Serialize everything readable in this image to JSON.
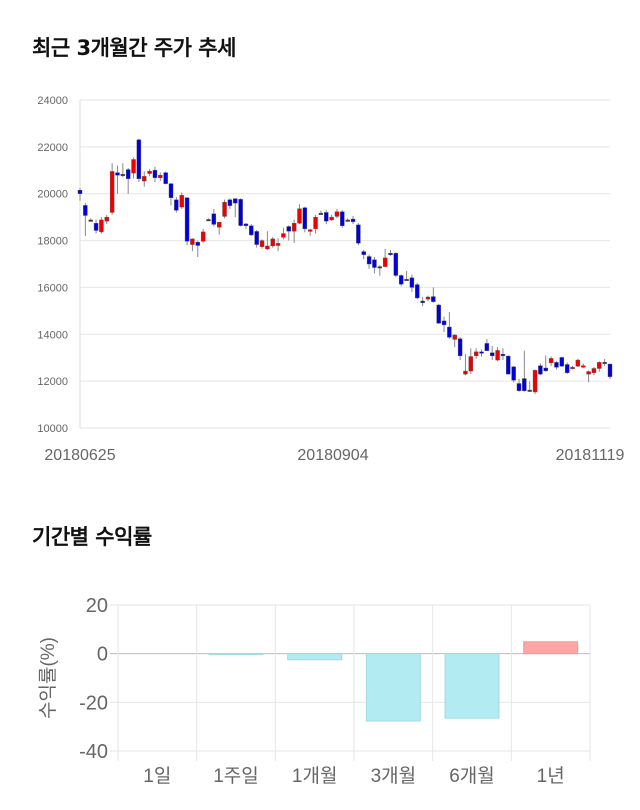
{
  "section1": {
    "title": "최근 3개월간 주가 추세"
  },
  "section2": {
    "title": "기간별 수익률"
  },
  "chart_data": [
    {
      "type": "candlestick",
      "ylim": [
        10000,
        24000
      ],
      "yticks": [
        "24000",
        "22000",
        "20000",
        "18000",
        "16000",
        "14000",
        "12000",
        "10000"
      ],
      "xticks": [
        "20180625",
        "20180904",
        "20181119"
      ],
      "colors": {
        "up": "#ee0000",
        "down": "#0000dd",
        "doji": "#333333"
      },
      "grid": true,
      "candles": [
        [
          20150,
          20250,
          19700,
          20000
        ],
        [
          19500,
          19600,
          18200,
          19070
        ],
        [
          18880,
          18950,
          18800,
          18880
        ],
        [
          18740,
          18900,
          18300,
          18430
        ],
        [
          18370,
          19000,
          18300,
          18880
        ],
        [
          18830,
          19100,
          18700,
          19000
        ],
        [
          19200,
          21300,
          19100,
          20950
        ],
        [
          20900,
          21200,
          20000,
          20790
        ],
        [
          20830,
          21300,
          20700,
          20830
        ],
        [
          21030,
          21100,
          20000,
          20640
        ],
        [
          20880,
          21550,
          20650,
          21460
        ],
        [
          22300,
          22350,
          20500,
          20640
        ],
        [
          20540,
          20950,
          20300,
          20740
        ],
        [
          20860,
          21050,
          20750,
          20960
        ],
        [
          21000,
          21150,
          20500,
          20680
        ],
        [
          20680,
          20900,
          20550,
          20790
        ],
        [
          20900,
          20950,
          20400,
          20430
        ],
        [
          20430,
          20450,
          19500,
          19830
        ],
        [
          19740,
          19850,
          19200,
          19290
        ],
        [
          19430,
          20050,
          19350,
          19930
        ],
        [
          19830,
          19850,
          17800,
          17970
        ],
        [
          17830,
          18100,
          17550,
          18070
        ],
        [
          17930,
          18000,
          17300,
          17790
        ],
        [
          17970,
          18500,
          17900,
          18370
        ],
        [
          18900,
          18950,
          18850,
          18900
        ],
        [
          19140,
          19350,
          18600,
          18690
        ],
        [
          18570,
          18800,
          18250,
          18780
        ],
        [
          19030,
          19750,
          18950,
          19640
        ],
        [
          19740,
          19800,
          19350,
          19490
        ],
        [
          19790,
          19800,
          19000,
          19600
        ],
        [
          19760,
          19800,
          18600,
          18640
        ],
        [
          18710,
          18750,
          18500,
          18630
        ],
        [
          18630,
          18700,
          18200,
          18240
        ],
        [
          18390,
          18450,
          17700,
          17830
        ],
        [
          17740,
          18050,
          17650,
          18000
        ],
        [
          17640,
          18400,
          17600,
          17770
        ],
        [
          17770,
          18150,
          17700,
          18070
        ],
        [
          17790,
          18100,
          17550,
          17880
        ],
        [
          18140,
          18550,
          18050,
          18300
        ],
        [
          18600,
          18650,
          18000,
          18400
        ],
        [
          18400,
          18900,
          17900,
          18740
        ],
        [
          18740,
          19550,
          18700,
          19360
        ],
        [
          19400,
          19450,
          18350,
          18500
        ],
        [
          18390,
          18500,
          18200,
          18460
        ],
        [
          18500,
          19100,
          18300,
          19000
        ],
        [
          19170,
          19280,
          19100,
          19170
        ],
        [
          19200,
          19300,
          18700,
          18830
        ],
        [
          18880,
          19100,
          18850,
          19000
        ],
        [
          19030,
          19350,
          18950,
          19230
        ],
        [
          19230,
          19300,
          18550,
          18630
        ],
        [
          18880,
          18950,
          18800,
          18880
        ],
        [
          18920,
          19050,
          18700,
          18800
        ],
        [
          18670,
          18750,
          17800,
          17890
        ],
        [
          17530,
          17600,
          17200,
          17400
        ],
        [
          17320,
          17400,
          16800,
          17000
        ],
        [
          17180,
          17300,
          16600,
          16850
        ],
        [
          16890,
          16950,
          16500,
          16890
        ],
        [
          16890,
          17650,
          16850,
          17260
        ],
        [
          17460,
          17600,
          17350,
          17400
        ],
        [
          17460,
          17500,
          16450,
          16510
        ],
        [
          16510,
          16550,
          16050,
          16140
        ],
        [
          16350,
          16700,
          16300,
          16350
        ],
        [
          16410,
          16550,
          15800,
          16000
        ],
        [
          16120,
          16200,
          15500,
          15550
        ],
        [
          15420,
          15600,
          15200,
          15350
        ],
        [
          15500,
          15650,
          15400,
          15590
        ],
        [
          15610,
          16000,
          15350,
          15390
        ],
        [
          15250,
          15300,
          14450,
          14470
        ],
        [
          14570,
          14750,
          14100,
          14400
        ],
        [
          14310,
          14950,
          13800,
          13870
        ],
        [
          13780,
          14000,
          13450,
          13970
        ],
        [
          13810,
          13880,
          12900,
          13080
        ],
        [
          12300,
          13150,
          12250,
          12430
        ],
        [
          12430,
          13400,
          12300,
          13050
        ],
        [
          13080,
          13400,
          12950,
          13250
        ],
        [
          13250,
          13350,
          13050,
          13200
        ],
        [
          13610,
          13800,
          13300,
          13300
        ],
        [
          13210,
          13500,
          12900,
          13080
        ],
        [
          12900,
          13450,
          12850,
          13310
        ],
        [
          13150,
          13400,
          12900,
          13080
        ],
        [
          13070,
          13100,
          12300,
          12300
        ],
        [
          12610,
          12650,
          11950,
          12040
        ],
        [
          11900,
          12100,
          11550,
          11590
        ],
        [
          12110,
          13300,
          11550,
          11590
        ],
        [
          11620,
          12000,
          11550,
          11620
        ],
        [
          11540,
          12500,
          11450,
          12460
        ],
        [
          12660,
          12750,
          12250,
          12300
        ],
        [
          12560,
          13100,
          12400,
          12440
        ],
        [
          12780,
          13050,
          12650,
          12970
        ],
        [
          12800,
          12850,
          12500,
          12590
        ],
        [
          13010,
          13050,
          12600,
          12640
        ],
        [
          12710,
          12800,
          12300,
          12360
        ],
        [
          12540,
          12650,
          12500,
          12590
        ],
        [
          12640,
          12950,
          12600,
          12900
        ],
        [
          12620,
          12750,
          12550,
          12660
        ],
        [
          12300,
          12450,
          11950,
          12410
        ],
        [
          12360,
          12600,
          12250,
          12540
        ],
        [
          12540,
          12850,
          12400,
          12800
        ],
        [
          12810,
          12950,
          12650,
          12810
        ],
        [
          12730,
          12750,
          12100,
          12190
        ]
      ]
    },
    {
      "type": "bar",
      "ylabel": "수익률(%)",
      "ylim": [
        -40,
        20
      ],
      "yticks": [
        "20",
        "0",
        "-20",
        "-40"
      ],
      "categories": [
        "1일",
        "1주일",
        "1개월",
        "3개월",
        "6개월",
        "1년"
      ],
      "values": [
        0,
        -0.3,
        -2.5,
        -27.7,
        -26.5,
        4.9
      ],
      "colors": {
        "positive": "#ffa5a5",
        "negative": "#b2ebf2"
      },
      "grid": true
    }
  ]
}
